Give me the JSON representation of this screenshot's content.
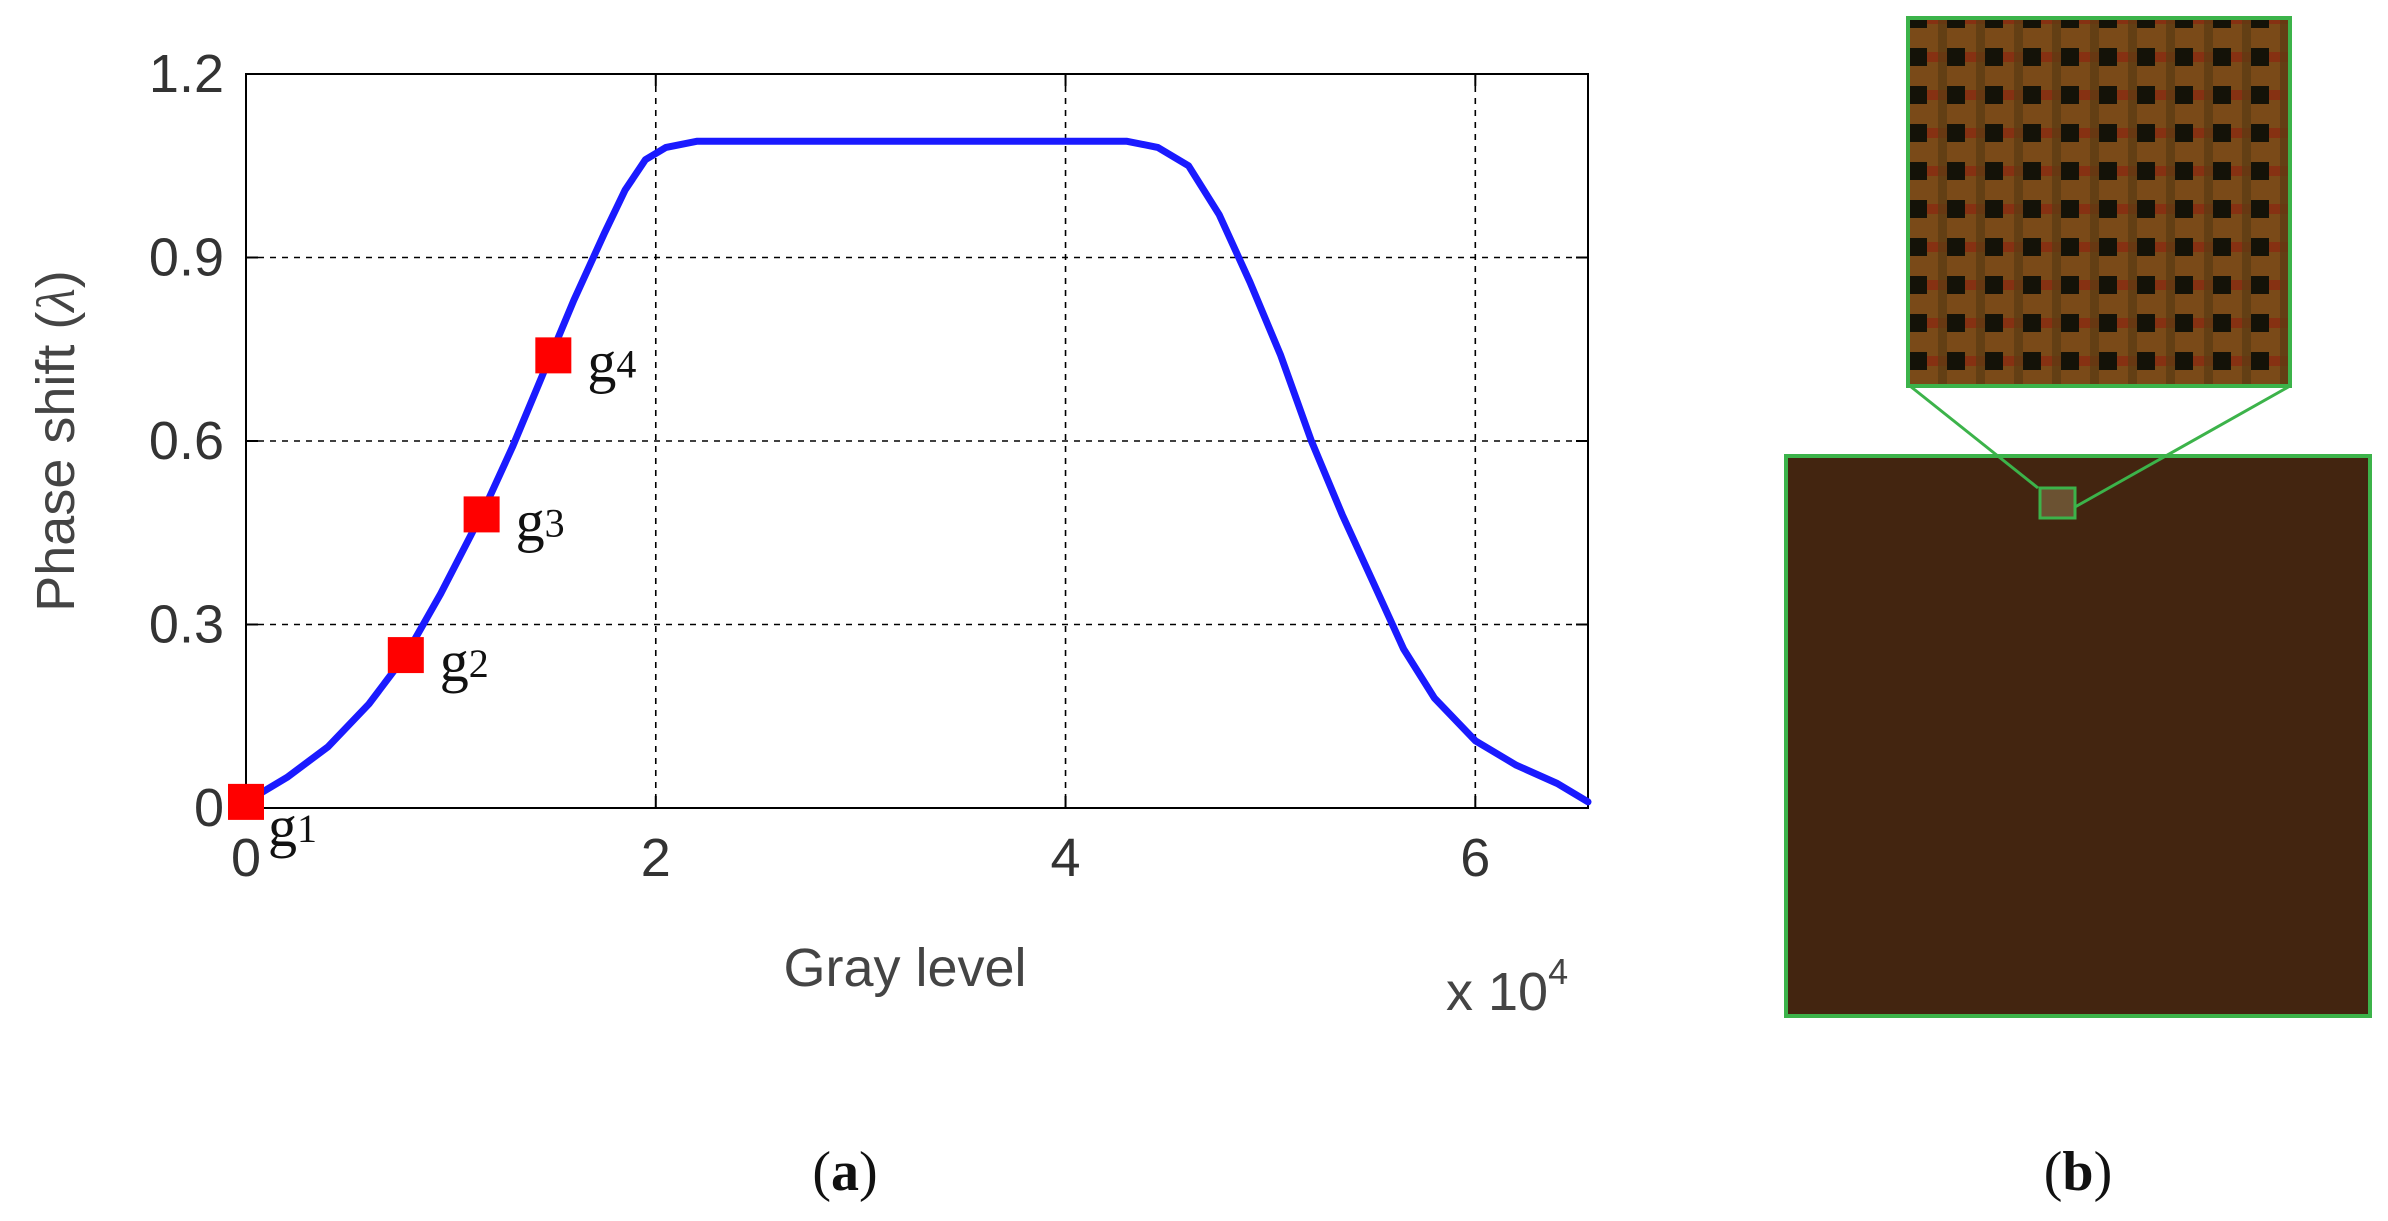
{
  "chart_data": {
    "type": "line",
    "xlabel": "Gray level",
    "x_multiplier": "x 10",
    "x_multiplier_exp": "4",
    "ylabel_text": "Phase shift (",
    "ylabel_symbol": "λ",
    "ylabel_close": ")",
    "xlim": [
      0,
      6.55
    ],
    "ylim": [
      0,
      1.2
    ],
    "x_ticks": [
      0,
      2,
      4,
      6
    ],
    "x_tick_labels": [
      "0",
      "2",
      "4",
      "6"
    ],
    "y_ticks": [
      0,
      0.3,
      0.6,
      0.9,
      1.2
    ],
    "y_tick_labels": [
      "0",
      "0.3",
      "0.6",
      "0.9",
      "1.2"
    ],
    "grid": true,
    "line_color": "#1a1aff",
    "marker_color": "#ff0000",
    "series": [
      {
        "x": [
          0,
          0.2,
          0.4,
          0.6,
          0.78,
          0.95,
          1.15,
          1.3,
          1.45,
          1.6,
          1.75,
          1.85,
          1.95,
          2.05,
          2.2,
          2.5,
          3.0,
          3.5,
          4.0,
          4.3,
          4.45,
          4.6,
          4.75,
          4.9,
          5.05,
          5.2,
          5.35,
          5.5,
          5.65,
          5.8,
          6.0,
          6.2,
          6.4,
          6.55
        ],
        "y": [
          0.01,
          0.05,
          0.1,
          0.17,
          0.25,
          0.35,
          0.48,
          0.59,
          0.71,
          0.83,
          0.94,
          1.01,
          1.06,
          1.08,
          1.09,
          1.09,
          1.09,
          1.09,
          1.09,
          1.09,
          1.08,
          1.05,
          0.97,
          0.86,
          0.74,
          0.6,
          0.48,
          0.37,
          0.26,
          0.18,
          0.11,
          0.07,
          0.04,
          0.01
        ]
      }
    ],
    "markers": [
      {
        "label": "g",
        "sub": "1",
        "x": 0,
        "y": 0.01,
        "pos": "below-right"
      },
      {
        "label": "g",
        "sub": "2",
        "x": 0.78,
        "y": 0.25,
        "pos": "right"
      },
      {
        "label": "g",
        "sub": "3",
        "x": 1.15,
        "y": 0.48,
        "pos": "right"
      },
      {
        "label": "g",
        "sub": "4",
        "x": 1.5,
        "y": 0.74,
        "pos": "right"
      }
    ]
  },
  "captions": {
    "a": {
      "open": "(",
      "letter": "a",
      "close": ")"
    },
    "b": {
      "open": "(",
      "letter": "b",
      "close": ")"
    }
  },
  "panel_b": {
    "image_color": "#432510",
    "frame_color": "#3cb34a",
    "zoom_dark": "#141208",
    "zoom_bright": "#7a4a18",
    "zoom_red": "#8a2a10"
  }
}
